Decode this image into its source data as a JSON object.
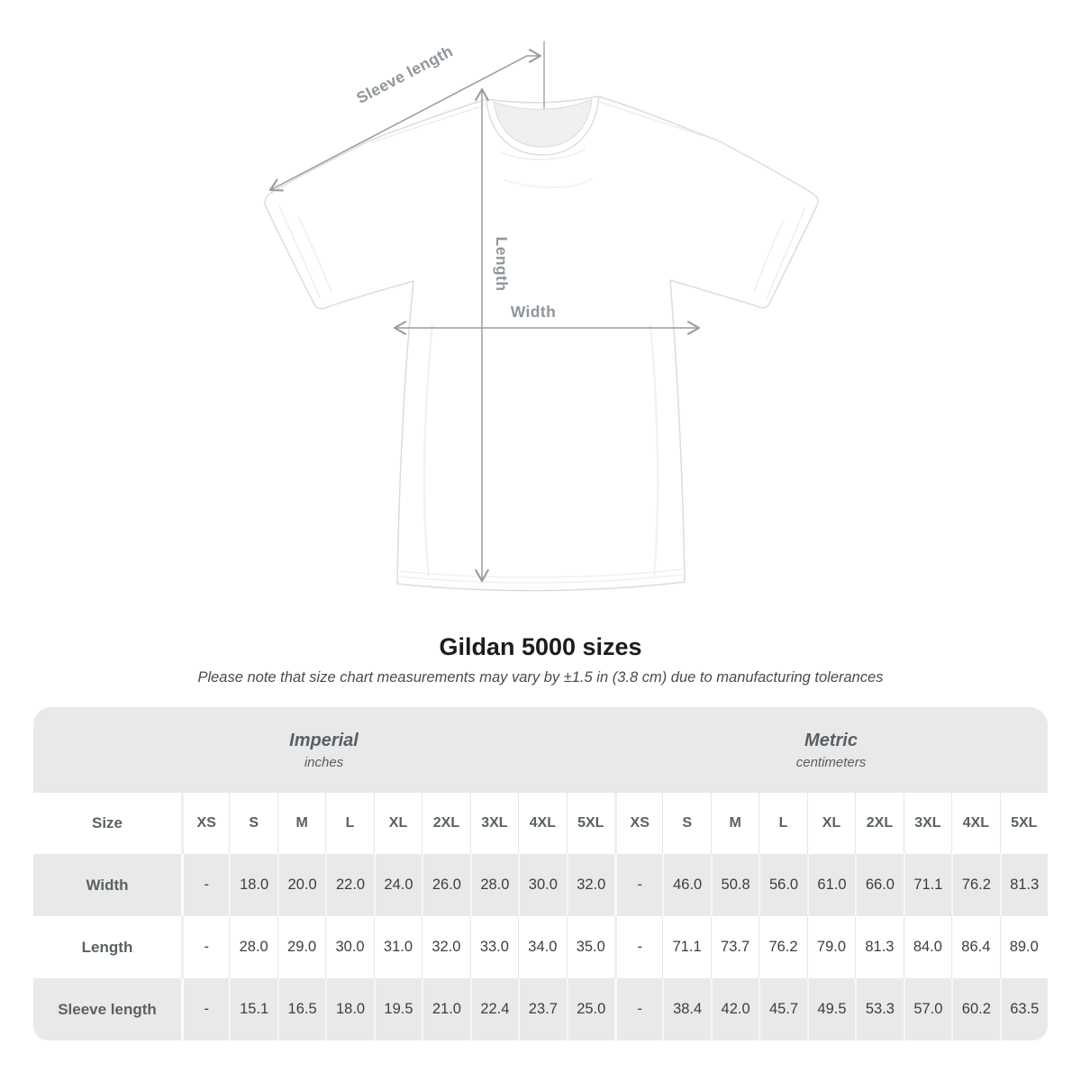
{
  "diagram": {
    "labels": {
      "sleeve": "Sleeve length",
      "length": "Length",
      "width": "Width"
    },
    "line_color": "#9b9b9b"
  },
  "title": "Gildan 5000 sizes",
  "subtitle": "Please note that size chart measurements may vary by ±1.5 in (3.8 cm) due to manufacturing tolerances",
  "chart_data": {
    "type": "table",
    "title": "Gildan 5000 sizes",
    "note": "Please note that size chart measurements may vary by ±1.5 in (3.8 cm) due to manufacturing tolerances",
    "sections": [
      {
        "label": "Imperial",
        "sublabel": "inches"
      },
      {
        "label": "Metric",
        "sublabel": "centimeters"
      }
    ],
    "size_column_header": "Size",
    "sizes": [
      "XS",
      "S",
      "M",
      "L",
      "XL",
      "2XL",
      "3XL",
      "4XL",
      "5XL"
    ],
    "rows": [
      {
        "label": "Width",
        "imperial": [
          "-",
          "18.0",
          "20.0",
          "22.0",
          "24.0",
          "26.0",
          "28.0",
          "30.0",
          "32.0"
        ],
        "metric": [
          "-",
          "46.0",
          "50.8",
          "56.0",
          "61.0",
          "66.0",
          "71.1",
          "76.2",
          "81.3"
        ]
      },
      {
        "label": "Length",
        "imperial": [
          "-",
          "28.0",
          "29.0",
          "30.0",
          "31.0",
          "32.0",
          "33.0",
          "34.0",
          "35.0"
        ],
        "metric": [
          "-",
          "71.1",
          "73.7",
          "76.2",
          "79.0",
          "81.3",
          "84.0",
          "86.4",
          "89.0"
        ]
      },
      {
        "label": "Sleeve length",
        "imperial": [
          "-",
          "15.1",
          "16.5",
          "18.0",
          "19.5",
          "21.0",
          "22.4",
          "23.7",
          "25.0"
        ],
        "metric": [
          "-",
          "38.4",
          "42.0",
          "45.7",
          "49.5",
          "53.3",
          "57.0",
          "60.2",
          "63.5"
        ]
      }
    ],
    "colors": {
      "band": "#e9e9e9"
    }
  }
}
